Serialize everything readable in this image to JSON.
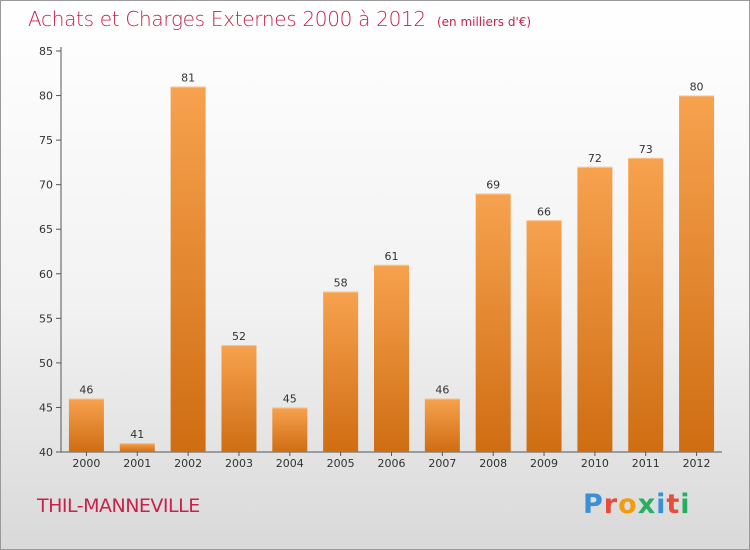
{
  "header": {
    "title": "Achats et Charges Externes 2000 à 2012",
    "unit": "(en milliers d'€)"
  },
  "footer": {
    "commune": "THIL-MANNEVILLE",
    "brand": "Proxiti",
    "brand_colors": [
      "#3a8fd6",
      "#e74c3c",
      "#f39c12",
      "#27ae60",
      "#3a8fd6",
      "#e74c3c",
      "#27ae60"
    ]
  },
  "colors": {
    "title": "#c8224a",
    "bar_light": "#f7a24f",
    "bar_dark": "#d06f14",
    "axis": "#555555"
  },
  "chart_data": {
    "type": "bar",
    "title": "Achats et Charges Externes 2000 à 2012",
    "subtitle": "(en milliers d'€)",
    "categories": [
      "2000",
      "2001",
      "2002",
      "2003",
      "2004",
      "2005",
      "2006",
      "2007",
      "2008",
      "2009",
      "2010",
      "2011",
      "2012"
    ],
    "values": [
      46,
      41,
      81,
      52,
      45,
      58,
      61,
      46,
      69,
      66,
      72,
      73,
      80
    ],
    "ylim": [
      40,
      85
    ],
    "yticks": [
      40,
      45,
      50,
      55,
      60,
      65,
      70,
      75,
      80,
      85
    ],
    "grid": false,
    "legend": "none"
  }
}
